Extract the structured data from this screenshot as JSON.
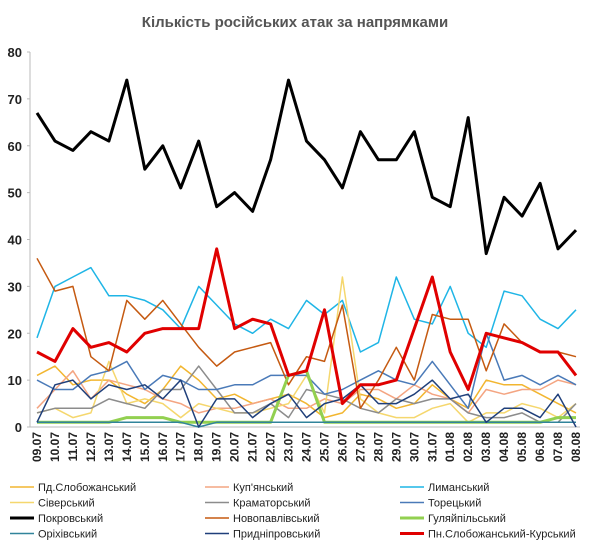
{
  "chart_data": {
    "type": "line",
    "title": "Кількість російських атак за напрямками",
    "categories": [
      "09.07",
      "10.07",
      "11.07",
      "12.07",
      "13.07",
      "14.07",
      "15.07",
      "16.07",
      "17.07",
      "18.07",
      "19.07",
      "20.07",
      "21.07",
      "22.07",
      "23.07",
      "24.07",
      "25.07",
      "26.07",
      "27.07",
      "28.07",
      "29.07",
      "30.07",
      "31.07",
      "01.08",
      "02.08",
      "03.08",
      "04.08",
      "05.08",
      "06.08",
      "07.08",
      "08.08"
    ],
    "ylim": [
      0,
      80
    ],
    "yticks": [
      0,
      10,
      20,
      30,
      40,
      50,
      60,
      70,
      80
    ],
    "grid": false,
    "series": [
      {
        "name": "Пд.Слобожанський",
        "color": "#f2b630",
        "line_width": 1.5,
        "values": [
          11,
          13,
          9,
          10,
          10,
          7,
          5,
          8,
          13,
          10,
          6,
          7,
          5,
          6,
          7,
          5,
          2,
          3,
          7,
          6,
          4,
          5,
          9,
          6,
          4,
          10,
          9,
          9,
          7,
          5,
          3
        ]
      },
      {
        "name": "Куп'янський",
        "color": "#f4a582",
        "line_width": 1.5,
        "values": [
          4,
          8,
          12,
          6,
          10,
          9,
          8,
          6,
          5,
          3,
          4,
          4,
          5,
          6,
          4,
          4,
          6,
          5,
          8,
          8,
          6,
          9,
          7,
          6,
          3,
          8,
          7,
          8,
          8,
          10,
          9
        ]
      },
      {
        "name": "Лиманський",
        "color": "#1fb5e6",
        "line_width": 1.5,
        "values": [
          19,
          30,
          32,
          34,
          28,
          28,
          27,
          25,
          21,
          30,
          26,
          22,
          20,
          23,
          21,
          27,
          24,
          27,
          16,
          18,
          32,
          23,
          22,
          30,
          20,
          17,
          29,
          28,
          23,
          21,
          25
        ]
      },
      {
        "name": "Сіверський",
        "color": "#f5d76e",
        "line_width": 1.5,
        "values": [
          3,
          4,
          2,
          3,
          14,
          5,
          6,
          5,
          2,
          5,
          4,
          3,
          3,
          4,
          5,
          11,
          3,
          32,
          6,
          3,
          2,
          2,
          4,
          5,
          1,
          3,
          3,
          5,
          4,
          2,
          5
        ]
      },
      {
        "name": "Краматорський",
        "color": "#8c8c8c",
        "line_width": 1.5,
        "values": [
          3,
          4,
          4,
          4,
          6,
          5,
          4,
          8,
          8,
          13,
          8,
          3,
          3,
          5,
          2,
          8,
          7,
          6,
          4,
          3,
          6,
          5,
          6,
          6,
          3,
          2,
          2,
          3,
          1,
          1,
          5
        ]
      },
      {
        "name": "Торецький",
        "color": "#4a7ab8",
        "line_width": 1.5,
        "values": [
          10,
          8,
          8,
          11,
          12,
          14,
          8,
          11,
          10,
          8,
          8,
          9,
          9,
          11,
          11,
          11,
          7,
          8,
          10,
          12,
          10,
          9,
          14,
          9,
          4,
          20,
          10,
          11,
          9,
          11,
          9
        ]
      },
      {
        "name": "Покровський",
        "color": "#000000",
        "line_width": 3,
        "values": [
          67,
          61,
          59,
          63,
          61,
          74,
          55,
          60,
          51,
          61,
          47,
          50,
          46,
          57,
          74,
          61,
          57,
          51,
          63,
          57,
          57,
          63,
          49,
          47,
          66,
          37,
          49,
          45,
          52,
          38,
          42
        ]
      },
      {
        "name": "Новопавлівський",
        "color": "#c55a11",
        "line_width": 1.5,
        "values": [
          36,
          29,
          30,
          15,
          12,
          27,
          23,
          27,
          22,
          17,
          13,
          16,
          17,
          18,
          9,
          15,
          14,
          26,
          4,
          10,
          17,
          10,
          24,
          23,
          23,
          12,
          22,
          18,
          16,
          16,
          15
        ]
      },
      {
        "name": "Гуляйпільський",
        "color": "#92d050",
        "line_width": 3,
        "values": [
          1,
          1,
          1,
          1,
          1,
          2,
          2,
          2,
          1,
          1,
          1,
          1,
          1,
          1,
          11,
          12,
          1,
          1,
          1,
          1,
          1,
          1,
          1,
          1,
          1,
          1,
          1,
          1,
          1,
          2,
          2
        ]
      },
      {
        "name": "Оріхівський",
        "color": "#31849b",
        "line_width": 1.5,
        "values": [
          1,
          1,
          1,
          1,
          1,
          1,
          1,
          1,
          1,
          0,
          1,
          1,
          1,
          1,
          1,
          1,
          1,
          1,
          1,
          1,
          1,
          1,
          1,
          1,
          1,
          1,
          1,
          1,
          1,
          1,
          1
        ]
      },
      {
        "name": "Придніпровський",
        "color": "#1f3f7a",
        "line_width": 1.5,
        "values": [
          1,
          9,
          10,
          6,
          9,
          8,
          9,
          6,
          10,
          0,
          6,
          6,
          2,
          5,
          7,
          2,
          5,
          6,
          9,
          5,
          5,
          7,
          10,
          6,
          7,
          1,
          4,
          4,
          2,
          7,
          0
        ]
      },
      {
        "name": "Пн.Слобожанський-Курський",
        "color": "#e00000",
        "line_width": 3,
        "values": [
          16,
          14,
          21,
          17,
          18,
          16,
          20,
          21,
          21,
          21,
          38,
          21,
          23,
          22,
          11,
          12,
          25,
          5,
          9,
          9,
          10,
          21,
          32,
          16,
          8,
          20,
          19,
          18,
          16,
          16,
          11
        ]
      }
    ]
  }
}
